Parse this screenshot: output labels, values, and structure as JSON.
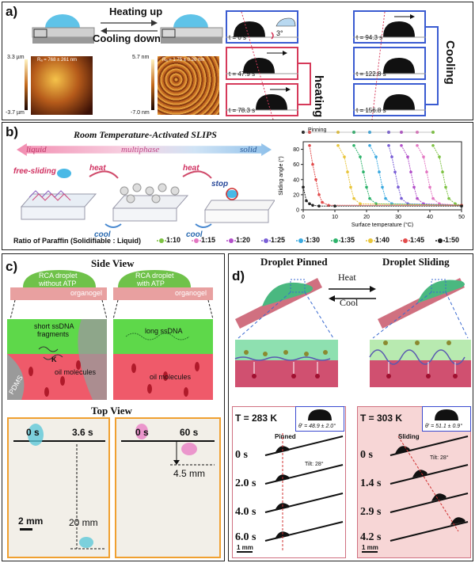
{
  "panel_a": {
    "label": "a)",
    "heating_up": "Heating up",
    "cooling_down": "Cooling down",
    "afm_left": {
      "top": "3.3 µm",
      "bottom": "-3.7 µm",
      "ra": "Rₐ = 768 ± 261 nm"
    },
    "afm_right": {
      "top": "5.7 nm",
      "bottom": "-7.0 nm",
      "ra": "Rₐ = 1.75 ± 0.26 nm"
    },
    "angle": "3°",
    "heating_frames": [
      "t = 0 s",
      "t = 47.9 s",
      "t = 78.3 s"
    ],
    "cooling_frames": [
      "t = 94.3 s",
      "t = 122.8 s",
      "t = 156.8 s"
    ],
    "heating_label": "heating",
    "cooling_label": "Cooling"
  },
  "panel_b": {
    "label": "b)",
    "title": "Room Temperature-Activated SLIPS",
    "liquid": "liquid",
    "multiphase": "multiphase",
    "solid": "solid",
    "free_sliding": "free-sliding",
    "heat1": "heat",
    "heat2": "heat",
    "cool1": "cool",
    "cool2": "cool",
    "stop": "stop",
    "pinning": "Pinning",
    "ratio_label": "Ratio of Paraffin (Solidifiable : Liquid)",
    "ratios": [
      "1:10",
      "1:15",
      "1:20",
      "1:25",
      "1:30",
      "1:35",
      "1:40",
      "1:45",
      "1:50"
    ],
    "colors": [
      "#7dc242",
      "#e377c2",
      "#b24fc9",
      "#7a5fd6",
      "#3aa9e0",
      "#2db36b",
      "#e8c53a",
      "#e24b4b",
      "#222222"
    ]
  },
  "chart_data": {
    "type": "line",
    "xlabel": "Surface temperature (°C)",
    "ylabel": "Sliding angle (°)",
    "xlim": [
      0,
      50
    ],
    "ylim": [
      0,
      90
    ],
    "xticks": [
      0,
      10,
      20,
      30,
      40,
      50
    ],
    "yticks": [
      0,
      20,
      40,
      60,
      80
    ],
    "series": [
      {
        "name": "1:10",
        "x": [
          41,
          43,
          44,
          45,
          46,
          48,
          50
        ],
        "y": [
          85,
          70,
          50,
          30,
          15,
          8,
          6
        ]
      },
      {
        "name": "1:15",
        "x": [
          36,
          38,
          39,
          40,
          41,
          43,
          50
        ],
        "y": [
          85,
          70,
          50,
          30,
          15,
          8,
          6
        ]
      },
      {
        "name": "1:20",
        "x": [
          31,
          33,
          34,
          35,
          36,
          38,
          50
        ],
        "y": [
          85,
          70,
          50,
          30,
          15,
          8,
          6
        ]
      },
      {
        "name": "1:25",
        "x": [
          27,
          28,
          29,
          30,
          31,
          33,
          50
        ],
        "y": [
          85,
          70,
          50,
          30,
          15,
          8,
          6
        ]
      },
      {
        "name": "1:30",
        "x": [
          21,
          23,
          24,
          25,
          26,
          28,
          50
        ],
        "y": [
          85,
          70,
          50,
          30,
          15,
          8,
          6
        ]
      },
      {
        "name": "1:35",
        "x": [
          16,
          18,
          19,
          20,
          21,
          23,
          50
        ],
        "y": [
          85,
          70,
          50,
          30,
          15,
          8,
          6
        ]
      },
      {
        "name": "1:40",
        "x": [
          11,
          13,
          14,
          15,
          16,
          18,
          50
        ],
        "y": [
          85,
          70,
          50,
          30,
          15,
          8,
          6
        ]
      },
      {
        "name": "1:45",
        "x": [
          2,
          3,
          4,
          5,
          6,
          8,
          50
        ],
        "y": [
          85,
          60,
          40,
          20,
          10,
          6,
          6
        ]
      },
      {
        "name": "1:50",
        "x": [
          0,
          1,
          2,
          3,
          5,
          10,
          50
        ],
        "y": [
          30,
          12,
          8,
          6,
          5,
          5,
          5
        ]
      }
    ]
  },
  "panel_c": {
    "label": "c)",
    "side_view": "Side View",
    "rca_no_atp": [
      "RCA droplet",
      "without ATP"
    ],
    "rca_atp": [
      "RCA droplet",
      "with ATP"
    ],
    "organogel": "organogel",
    "short_ssdna": [
      "short ssDNA",
      "fragments"
    ],
    "long_ssdna": "long ssDNA",
    "k_label": "K",
    "oil_molecules": "oil molecules",
    "pdms": "PDMS",
    "top_view": "Top View",
    "times_left": [
      "0 s",
      "3.6 s"
    ],
    "times_right": [
      "0 s",
      "60 s"
    ],
    "dist_20": "20 mm",
    "dist_45": "4.5 mm",
    "scale": "2 mm"
  },
  "panel_d": {
    "label": "d)",
    "pinned_title": "Droplet Pinned",
    "sliding_title": "Droplet Sliding",
    "heat": "Heat",
    "cool": "Cool",
    "temp_left": "T = 283 K",
    "temp_right": "T = 303 K",
    "theta_left": "θ' = 48.9 ± 2.0°",
    "theta_right": "θ' = 51.1 ± 0.9°",
    "pinned_tag": "Pinned",
    "sliding_tag": "Sliding",
    "tilt": "Tilt: 28°",
    "times_left": [
      "0 s",
      "2.0 s",
      "4.0 s",
      "6.0 s"
    ],
    "times_right": [
      "0 s",
      "1.4 s",
      "2.9 s",
      "4.2 s"
    ],
    "scale": "1 mm"
  }
}
